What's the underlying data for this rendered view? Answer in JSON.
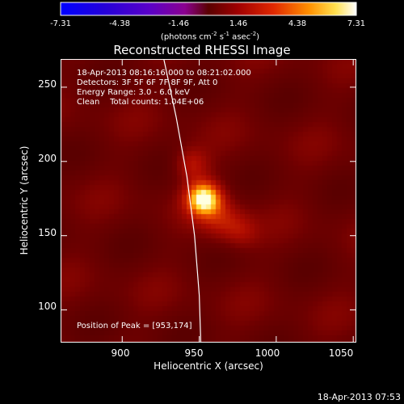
{
  "colorbar": {
    "tick_labels": [
      "-7.31",
      "-4.38",
      "-1.46",
      "1.46",
      "4.38",
      "7.31"
    ],
    "unit_label": {
      "part1": "(photons cm",
      "exp1": "-2",
      "part2": " s",
      "exp2": "-1",
      "part3": " asec",
      "exp3": "-2",
      "part4": ")"
    }
  },
  "title": "Reconstructed RHESSI Image",
  "info": {
    "time_range": "18-Apr-2013 08:16:16.000 to 08:21:02.000",
    "detectors": "Detectors: 3F 5F 6F 7F 8F 9F, Att 0",
    "energy_range": "Energy Range: 3.0 - 6.0 keV",
    "clean_counts": "Clean    Total counts: 1.04E+06"
  },
  "peak_label": "Position of Peak = [953,174]",
  "timestamp": "18-Apr-2013 07:53",
  "chart_data": {
    "type": "heatmap",
    "title": "Reconstructed RHESSI Image",
    "xlabel": "Heliocentric X (arcsec)",
    "ylabel": "Heliocentric Y (arcsec)",
    "xlim": [
      860,
      1052
    ],
    "ylim": [
      78,
      269
    ],
    "x_ticks": [
      900,
      950,
      1000,
      1050
    ],
    "y_ticks": [
      100,
      150,
      200,
      250
    ],
    "colorbar_range": [
      -7.31,
      7.31
    ],
    "colormap": "red-temperature",
    "peak": [
      953,
      174
    ],
    "sources": [
      {
        "x": 953,
        "y": 175,
        "sigma": 8,
        "amp": 7.31
      },
      {
        "x": 945,
        "y": 198,
        "sigma": 8,
        "amp": 2.6
      },
      {
        "x": 965,
        "y": 160,
        "sigma": 10,
        "amp": 2.4
      },
      {
        "x": 978,
        "y": 152,
        "sigma": 8,
        "amp": 1.6
      }
    ],
    "limb_curve": [
      [
        927,
        269
      ],
      [
        935,
        230
      ],
      [
        942,
        190
      ],
      [
        947,
        150
      ],
      [
        950,
        110
      ],
      [
        951,
        78
      ]
    ]
  }
}
